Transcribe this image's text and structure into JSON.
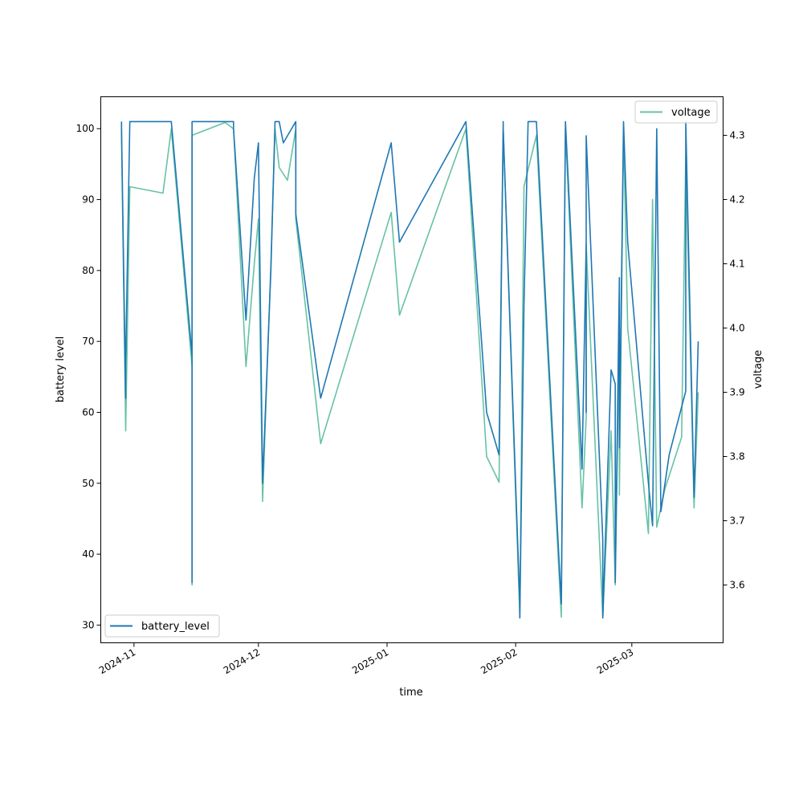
{
  "chart_data": {
    "type": "line",
    "xlabel": "time",
    "ylabel_left": "battery level",
    "ylabel_right": "voltage",
    "x_range": [
      "2024-10-24",
      "2025-03-23"
    ],
    "ylim_left": [
      27.5,
      104.5
    ],
    "ylim_right": [
      3.51,
      4.36
    ],
    "x_ticks": [
      {
        "date": "2024-11-01",
        "label": "2024-11"
      },
      {
        "date": "2024-12-01",
        "label": "2024-12"
      },
      {
        "date": "2025-01-01",
        "label": "2025-01"
      },
      {
        "date": "2025-02-01",
        "label": "2025-02"
      },
      {
        "date": "2025-03-01",
        "label": "2025-03"
      }
    ],
    "y_ticks_left": [
      30,
      40,
      50,
      60,
      70,
      80,
      90,
      100
    ],
    "y_ticks_right": [
      3.6,
      3.7,
      3.8,
      3.9,
      4.0,
      4.1,
      4.2,
      4.3
    ],
    "grid": false,
    "series": [
      {
        "name": "battery_level",
        "axis": "left",
        "color": "#1f77b4",
        "legend": "bottom-left",
        "points": [
          [
            "2024-10-29",
            101
          ],
          [
            "2024-10-29",
            100
          ],
          [
            "2024-10-30",
            62
          ],
          [
            "2024-10-30",
            67
          ],
          [
            "2024-10-31",
            101
          ],
          [
            "2024-11-01",
            101
          ],
          [
            "2024-11-08",
            101
          ],
          [
            "2024-11-10",
            101
          ],
          [
            "2024-11-15",
            68
          ],
          [
            "2024-11-15",
            36
          ],
          [
            "2024-11-15",
            101
          ],
          [
            "2024-11-20",
            101
          ],
          [
            "2024-11-25",
            101
          ],
          [
            "2024-11-25",
            100
          ],
          [
            "2024-11-28",
            73
          ],
          [
            "2024-11-30",
            93
          ],
          [
            "2024-12-01",
            98
          ],
          [
            "2024-12-02",
            50
          ],
          [
            "2024-12-04",
            80
          ],
          [
            "2024-12-05",
            101
          ],
          [
            "2024-12-06",
            101
          ],
          [
            "2024-12-07",
            98
          ],
          [
            "2024-12-09",
            100
          ],
          [
            "2024-12-10",
            101
          ],
          [
            "2024-12-10",
            88
          ],
          [
            "2024-12-16",
            62
          ],
          [
            "2025-01-02",
            98
          ],
          [
            "2025-01-04",
            84
          ],
          [
            "2025-01-20",
            101
          ],
          [
            "2025-01-25",
            60
          ],
          [
            "2025-01-28",
            54
          ],
          [
            "2025-01-29",
            101
          ],
          [
            "2025-01-29",
            100
          ],
          [
            "2025-02-02",
            33
          ],
          [
            "2025-02-02",
            31
          ],
          [
            "2025-02-03",
            75
          ],
          [
            "2025-02-04",
            101
          ],
          [
            "2025-02-06",
            101
          ],
          [
            "2025-02-12",
            33
          ],
          [
            "2025-02-13",
            101
          ],
          [
            "2025-02-17",
            52
          ],
          [
            "2025-02-18",
            84
          ],
          [
            "2025-02-18",
            60
          ],
          [
            "2025-02-18",
            99
          ],
          [
            "2025-02-22",
            42
          ],
          [
            "2025-02-22",
            31
          ],
          [
            "2025-02-24",
            66
          ],
          [
            "2025-02-25",
            64
          ],
          [
            "2025-02-25",
            36
          ],
          [
            "2025-02-26",
            79
          ],
          [
            "2025-02-26",
            55
          ],
          [
            "2025-02-27",
            101
          ],
          [
            "2025-02-28",
            84
          ],
          [
            "2025-03-05",
            50
          ],
          [
            "2025-03-06",
            44
          ],
          [
            "2025-03-07",
            100
          ],
          [
            "2025-03-08",
            46
          ],
          [
            "2025-03-10",
            54
          ],
          [
            "2025-03-14",
            63
          ],
          [
            "2025-03-14",
            101
          ],
          [
            "2025-03-16",
            48
          ],
          [
            "2025-03-17",
            70
          ]
        ]
      },
      {
        "name": "voltage",
        "axis": "right",
        "color": "#66c2a5",
        "legend": "top-right",
        "points": [
          [
            "2024-10-29",
            4.31
          ],
          [
            "2024-10-29",
            4.3
          ],
          [
            "2024-10-30",
            3.84
          ],
          [
            "2024-10-31",
            4.22
          ],
          [
            "2024-11-08",
            4.21
          ],
          [
            "2024-11-10",
            4.31
          ],
          [
            "2024-11-15",
            3.94
          ],
          [
            "2024-11-15",
            3.6
          ],
          [
            "2024-11-15",
            4.3
          ],
          [
            "2024-11-23",
            4.32
          ],
          [
            "2024-11-25",
            4.31
          ],
          [
            "2024-11-28",
            3.94
          ],
          [
            "2024-11-30",
            4.1
          ],
          [
            "2024-12-01",
            4.17
          ],
          [
            "2024-12-02",
            3.73
          ],
          [
            "2024-12-04",
            4.1
          ],
          [
            "2024-12-05",
            4.31
          ],
          [
            "2024-12-06",
            4.25
          ],
          [
            "2024-12-08",
            4.23
          ],
          [
            "2024-12-10",
            4.31
          ],
          [
            "2024-12-10",
            4.17
          ],
          [
            "2024-12-16",
            3.82
          ],
          [
            "2025-01-02",
            4.18
          ],
          [
            "2025-01-04",
            4.02
          ],
          [
            "2025-01-20",
            4.31
          ],
          [
            "2025-01-25",
            3.8
          ],
          [
            "2025-01-28",
            3.76
          ],
          [
            "2025-01-29",
            4.31
          ],
          [
            "2025-02-02",
            3.55
          ],
          [
            "2025-02-03",
            4.22
          ],
          [
            "2025-02-06",
            4.3
          ],
          [
            "2025-02-12",
            3.55
          ],
          [
            "2025-02-13",
            4.31
          ],
          [
            "2025-02-17",
            3.72
          ],
          [
            "2025-02-18",
            3.86
          ],
          [
            "2025-02-18",
            4.13
          ],
          [
            "2025-02-22",
            3.55
          ],
          [
            "2025-02-24",
            3.84
          ],
          [
            "2025-02-25",
            3.6
          ],
          [
            "2025-02-26",
            4.0
          ],
          [
            "2025-02-26",
            3.74
          ],
          [
            "2025-02-27",
            4.31
          ],
          [
            "2025-02-28",
            4.0
          ],
          [
            "2025-03-05",
            3.68
          ],
          [
            "2025-03-06",
            4.2
          ],
          [
            "2025-03-07",
            3.69
          ],
          [
            "2025-03-09",
            3.75
          ],
          [
            "2025-03-13",
            3.83
          ],
          [
            "2025-03-14",
            4.27
          ],
          [
            "2025-03-16",
            3.72
          ],
          [
            "2025-03-17",
            3.9
          ]
        ]
      }
    ]
  }
}
